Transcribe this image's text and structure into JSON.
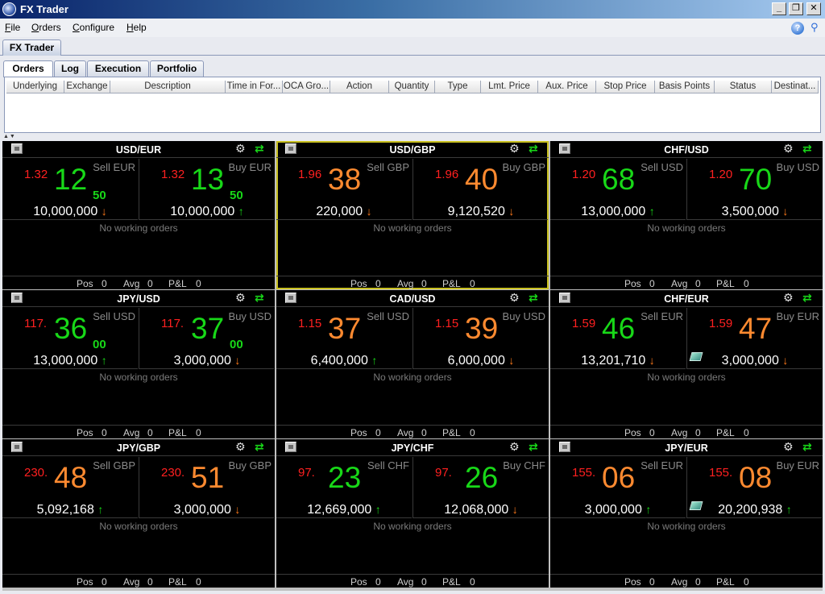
{
  "window": {
    "title": "FX Trader",
    "min": "_",
    "restore": "❐",
    "close": "✕"
  },
  "menu": [
    {
      "u": "F",
      "rest": "ile"
    },
    {
      "u": "O",
      "rest": "rders"
    },
    {
      "u": "C",
      "rest": "onfigure"
    },
    {
      "u": "H",
      "rest": "elp"
    }
  ],
  "app_tab": "FX Trader",
  "subtabs": [
    "Orders",
    "Log",
    "Execution",
    "Portfolio"
  ],
  "columns": [
    "Underlying",
    "Exchange",
    "Description",
    "Time in For...",
    "OCA Gro...",
    "Action",
    "Quantity",
    "Type",
    "Lmt. Price",
    "Aux. Price",
    "Stop Price",
    "Basis Points",
    "Status",
    "Destinat..."
  ],
  "footer_labels": {
    "pos": "Pos",
    "avg": "Avg",
    "pnl": "P&L"
  },
  "no_orders": "No working orders",
  "tiles": [
    {
      "pair": "USD/EUR",
      "sell": {
        "label": "Sell EUR",
        "big": "1.32",
        "pips": "12",
        "frac": "50",
        "size": "10,000,000",
        "arrow": "↓",
        "color": "grn"
      },
      "buy": {
        "label": "Buy EUR",
        "big": "1.32",
        "pips": "13",
        "frac": "50",
        "size": "10,000,000",
        "arrow": "↑",
        "color": "grn"
      },
      "pos": "0",
      "avg": "0",
      "pnl": "0"
    },
    {
      "pair": "USD/GBP",
      "selected": true,
      "sell": {
        "label": "Sell GBP",
        "big": "1.96",
        "pips": "38",
        "frac": "",
        "size": "220,000",
        "arrow": "↓",
        "color": "org"
      },
      "buy": {
        "label": "Buy GBP",
        "big": "1.96",
        "pips": "40",
        "frac": "",
        "size": "9,120,520",
        "arrow": "↓",
        "color": "org"
      },
      "pos": "0",
      "avg": "0",
      "pnl": "0"
    },
    {
      "pair": "CHF/USD",
      "sell": {
        "label": "Sell USD",
        "big": "1.20",
        "pips": "68",
        "frac": "",
        "size": "13,000,000",
        "arrow": "↑",
        "color": "grn"
      },
      "buy": {
        "label": "Buy USD",
        "big": "1.20",
        "pips": "70",
        "frac": "",
        "size": "3,500,000",
        "arrow": "↓",
        "color": "grn"
      },
      "pos": "0",
      "avg": "0",
      "pnl": "0"
    },
    {
      "pair": "JPY/USD",
      "sell": {
        "label": "Sell USD",
        "big": "117.",
        "pips": "36",
        "frac": "00",
        "size": "13,000,000",
        "arrow": "↑",
        "color": "grn"
      },
      "buy": {
        "label": "Buy USD",
        "big": "117.",
        "pips": "37",
        "frac": "00",
        "size": "3,000,000",
        "arrow": "↓",
        "color": "grn"
      },
      "pos": "0",
      "avg": "0",
      "pnl": "0"
    },
    {
      "pair": "CAD/USD",
      "sell": {
        "label": "Sell USD",
        "big": "1.15",
        "pips": "37",
        "frac": "",
        "size": "6,400,000",
        "arrow": "↑",
        "color": "org"
      },
      "buy": {
        "label": "Buy USD",
        "big": "1.15",
        "pips": "39",
        "frac": "",
        "size": "6,000,000",
        "arrow": "↓",
        "color": "org"
      },
      "pos": "0",
      "avg": "0",
      "pnl": "0"
    },
    {
      "pair": "CHF/EUR",
      "sell": {
        "label": "Sell EUR",
        "big": "1.59",
        "pips": "46",
        "frac": "",
        "size": "13,201,710",
        "arrow": "↓",
        "color": "grn"
      },
      "buy": {
        "label": "Buy EUR",
        "big": "1.59",
        "pips": "47",
        "frac": "",
        "size": "3,000,000",
        "arrow": "↓",
        "color": "org",
        "book": true
      },
      "pos": "0",
      "avg": "0",
      "pnl": "0"
    },
    {
      "pair": "JPY/GBP",
      "sell": {
        "label": "Sell GBP",
        "big": "230.",
        "pips": "48",
        "frac": "",
        "size": "5,092,168",
        "arrow": "↑",
        "color": "org"
      },
      "buy": {
        "label": "Buy GBP",
        "big": "230.",
        "pips": "51",
        "frac": "",
        "size": "3,000,000",
        "arrow": "↓",
        "color": "org"
      },
      "pos": "0",
      "avg": "0",
      "pnl": "0"
    },
    {
      "pair": "JPY/CHF",
      "sell": {
        "label": "Sell CHF",
        "big": "97.",
        "pips": "23",
        "frac": "",
        "size": "12,669,000",
        "arrow": "↑",
        "color": "grn"
      },
      "buy": {
        "label": "Buy CHF",
        "big": "97.",
        "pips": "26",
        "frac": "",
        "size": "12,068,000",
        "arrow": "↓",
        "color": "grn"
      },
      "pos": "0",
      "avg": "0",
      "pnl": "0"
    },
    {
      "pair": "JPY/EUR",
      "sell": {
        "label": "Sell EUR",
        "big": "155.",
        "pips": "06",
        "frac": "",
        "size": "3,000,000",
        "arrow": "↑",
        "color": "org"
      },
      "buy": {
        "label": "Buy EUR",
        "big": "155.",
        "pips": "08",
        "frac": "",
        "size": "20,200,938",
        "arrow": "↑",
        "color": "org",
        "book": true
      },
      "pos": "0",
      "avg": "0",
      "pnl": "0"
    }
  ]
}
